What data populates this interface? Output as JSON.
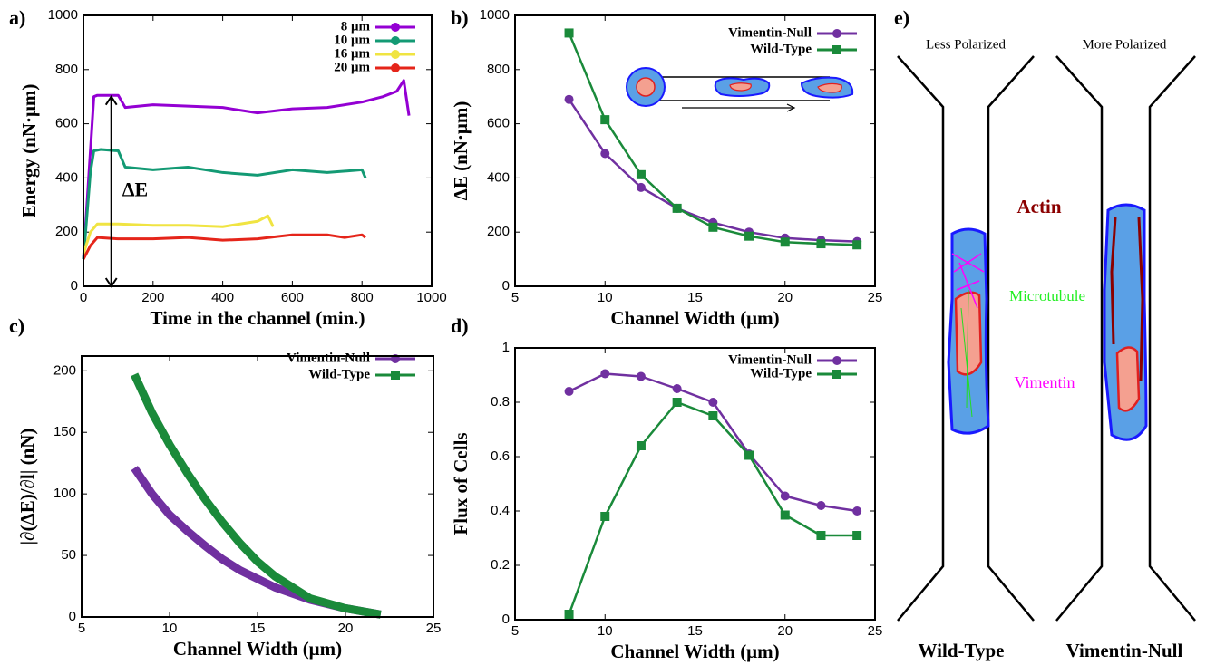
{
  "chart_data": [
    {
      "type": "line",
      "panel_label": "a)",
      "xlabel": "Time in the channel (min.)",
      "ylabel": "Energy (nN·μm)",
      "annotation": "ΔE",
      "xlim": [
        0,
        1000
      ],
      "xticks": [
        0,
        200,
        400,
        600,
        800,
        1000
      ],
      "ylim": [
        0,
        1000
      ],
      "yticks": [
        0,
        200,
        400,
        600,
        800,
        1000
      ],
      "markers": false,
      "series": [
        {
          "name": "8 μm",
          "color": "#9400d3",
          "x": [
            0,
            20,
            30,
            40,
            100,
            120,
            200,
            300,
            400,
            500,
            600,
            700,
            800,
            860,
            900,
            920,
            935
          ],
          "values": [
            100,
            500,
            700,
            705,
            705,
            660,
            670,
            665,
            660,
            640,
            655,
            660,
            680,
            700,
            720,
            760,
            630
          ]
        },
        {
          "name": "10 μm",
          "color": "#139a74",
          "x": [
            0,
            20,
            30,
            50,
            100,
            120,
            200,
            300,
            400,
            500,
            600,
            700,
            800,
            810
          ],
          "values": [
            100,
            420,
            500,
            505,
            500,
            440,
            430,
            440,
            420,
            410,
            430,
            420,
            430,
            400
          ]
        },
        {
          "name": "16 μm",
          "color": "#f0e442",
          "x": [
            0,
            20,
            40,
            100,
            200,
            300,
            400,
            450,
            500,
            530,
            545
          ],
          "values": [
            120,
            200,
            230,
            230,
            225,
            225,
            220,
            230,
            240,
            260,
            220
          ]
        },
        {
          "name": "20 μm",
          "color": "#e5251a",
          "x": [
            0,
            20,
            40,
            100,
            200,
            300,
            400,
            500,
            600,
            700,
            750,
            800,
            810
          ],
          "values": [
            100,
            150,
            180,
            175,
            175,
            180,
            170,
            175,
            190,
            190,
            180,
            190,
            180
          ]
        }
      ]
    },
    {
      "type": "line",
      "panel_label": "b)",
      "xlabel": "Channel Width (μm)",
      "ylabel": "ΔE (nN·μm)",
      "xlim": [
        5,
        25
      ],
      "xticks": [
        5,
        10,
        15,
        20,
        25
      ],
      "ylim": [
        0,
        1000
      ],
      "yticks": [
        0,
        200,
        400,
        600,
        800,
        1000
      ],
      "markers": true,
      "series": [
        {
          "name": "Vimentin-Null",
          "color": "#7030a0",
          "marker": "circle",
          "x": [
            8,
            10,
            12,
            14,
            16,
            18,
            20,
            22,
            24
          ],
          "values": [
            690,
            490,
            365,
            288,
            235,
            200,
            178,
            170,
            165
          ]
        },
        {
          "name": "Wild-Type",
          "color": "#1a8a3a",
          "marker": "square",
          "x": [
            8,
            10,
            12,
            14,
            16,
            18,
            20,
            22,
            24
          ],
          "values": [
            935,
            615,
            412,
            288,
            218,
            185,
            163,
            157,
            153
          ]
        }
      ]
    },
    {
      "type": "line",
      "panel_label": "c)",
      "xlabel": "Channel Width (μm)",
      "ylabel": "|∂(ΔE)/∂l| (nN)",
      "xlim": [
        5,
        25
      ],
      "xticks": [
        5,
        10,
        15,
        20,
        25
      ],
      "ylim": [
        0,
        212
      ],
      "yticks": [
        0,
        50,
        100,
        150,
        200
      ],
      "markers": false,
      "series": [
        {
          "name": "Vimentin-Null",
          "color": "#7030a0",
          "marker": "circle",
          "x": [
            8,
            9,
            10,
            11,
            12,
            13,
            14,
            15,
            16,
            18,
            20,
            22
          ],
          "values": [
            121,
            100,
            83,
            70,
            58,
            47,
            38,
            31,
            24,
            14,
            7,
            2
          ]
        },
        {
          "name": "Wild-Type",
          "color": "#1a8a3a",
          "marker": "square",
          "x": [
            8,
            9,
            10,
            11,
            12,
            13,
            14,
            15,
            16,
            18,
            20,
            22
          ],
          "values": [
            197,
            166,
            140,
            117,
            96,
            77,
            60,
            45,
            33,
            15,
            7,
            2
          ]
        }
      ]
    },
    {
      "type": "line",
      "panel_label": "d)",
      "xlabel": "Channel Width (μm)",
      "ylabel": "Flux of Cells",
      "xlim": [
        5,
        25
      ],
      "xticks": [
        5,
        10,
        15,
        20,
        25
      ],
      "ylim": [
        0,
        1
      ],
      "yticks": [
        0,
        0.2,
        0.4,
        0.6,
        0.8,
        1
      ],
      "markers": true,
      "series": [
        {
          "name": "Vimentin-Null",
          "color": "#7030a0",
          "marker": "circle",
          "x": [
            8,
            10,
            12,
            14,
            16,
            18,
            20,
            22,
            24
          ],
          "values": [
            0.84,
            0.905,
            0.895,
            0.85,
            0.8,
            0.61,
            0.455,
            0.42,
            0.4
          ]
        },
        {
          "name": "Wild-Type",
          "color": "#1a8a3a",
          "marker": "square",
          "x": [
            8,
            10,
            12,
            14,
            16,
            18,
            20,
            22,
            24
          ],
          "values": [
            0.02,
            0.38,
            0.64,
            0.8,
            0.75,
            0.605,
            0.385,
            0.31,
            0.31
          ]
        }
      ]
    }
  ],
  "diagram": {
    "panel_label": "e)",
    "left_title": "Less Polarized",
    "right_title": "More Polarized",
    "actin": "Actin",
    "microtubule": "Microtubule",
    "vimentin": "Vimentin",
    "left_label": "Wild-Type",
    "right_label": "Vimentin-Null"
  }
}
